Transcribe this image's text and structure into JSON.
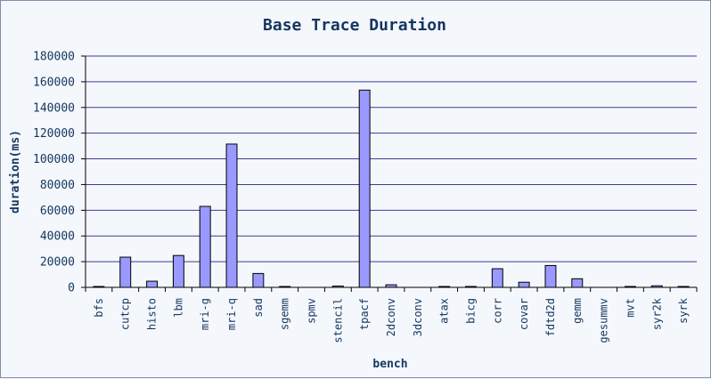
{
  "chart_data": {
    "type": "bar",
    "title": "Base Trace Duration",
    "xlabel": "bench",
    "ylabel": "duration(ms)",
    "ylim": [
      0,
      180000
    ],
    "yticks": [
      0,
      20000,
      40000,
      60000,
      80000,
      100000,
      120000,
      140000,
      160000,
      180000
    ],
    "grid": true,
    "legend": "none",
    "bar_color": "#9999ff",
    "bar_edge_color": "#000000",
    "gridline_color": "#3a3f8f",
    "categories": [
      "bfs",
      "cutcp",
      "histo",
      "lbm",
      "mri-g",
      "mri-q",
      "sad",
      "sgemm",
      "spmv",
      "stencil",
      "tpacf",
      "2dconv",
      "3dconv",
      "atax",
      "bicg",
      "corr",
      "covar",
      "fdtd2d",
      "gemm",
      "gesummv",
      "mvt",
      "syr2k",
      "syrk"
    ],
    "values": [
      300,
      23500,
      4800,
      24800,
      63000,
      111500,
      10800,
      400,
      0,
      1000,
      153500,
      2000,
      0,
      600,
      500,
      14500,
      4000,
      17000,
      6700,
      0,
      500,
      1200,
      300
    ]
  }
}
